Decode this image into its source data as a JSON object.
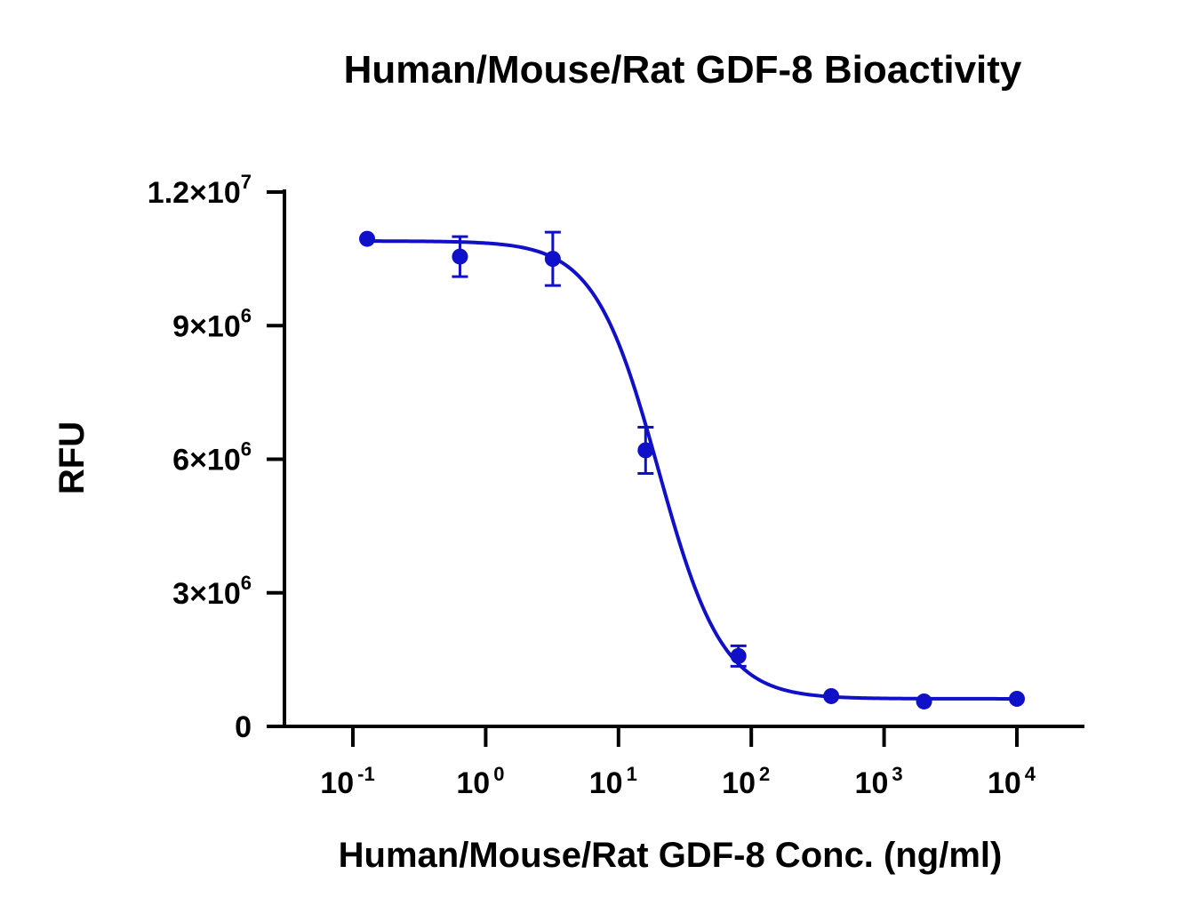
{
  "chart_data": {
    "type": "scatter",
    "title": "Human/Mouse/Rat GDF-8 Bioactivity",
    "xlabel": "Human/Mouse/Rat GDF-8 Conc. (ng/ml)",
    "ylabel": "RFU",
    "x_scale": "log",
    "xlim": [
      0.07,
      30000
    ],
    "ylim": [
      0,
      12000000
    ],
    "y_ticks": [
      {
        "value": 0,
        "label": "0",
        "mantissa": "",
        "exp": ""
      },
      {
        "value": 3000000,
        "label": "3×10^6",
        "mantissa": "3×10",
        "exp": "6"
      },
      {
        "value": 6000000,
        "label": "6×10^6",
        "mantissa": "6×10",
        "exp": "6"
      },
      {
        "value": 9000000,
        "label": "9×10^6",
        "mantissa": "9×10",
        "exp": "6"
      },
      {
        "value": 12000000,
        "label": "1.2×10^7",
        "mantissa": "1.2×10",
        "exp": "7"
      }
    ],
    "x_ticks": [
      {
        "value": 0.1,
        "base": "10",
        "exp": "-1"
      },
      {
        "value": 1,
        "base": "10",
        "exp": "0"
      },
      {
        "value": 10,
        "base": "10",
        "exp": "1"
      },
      {
        "value": 100,
        "base": "10",
        "exp": "2"
      },
      {
        "value": 1000,
        "base": "10",
        "exp": "3"
      },
      {
        "value": 10000,
        "base": "10",
        "exp": "4"
      }
    ],
    "series": [
      {
        "color": "#1010c8",
        "points": [
          {
            "x": 0.128,
            "y": 10950000,
            "err": 0
          },
          {
            "x": 0.64,
            "y": 10550000,
            "err": 450000
          },
          {
            "x": 3.2,
            "y": 10500000,
            "err": 600000
          },
          {
            "x": 16,
            "y": 6200000,
            "err": 520000
          },
          {
            "x": 80,
            "y": 1580000,
            "err": 230000
          },
          {
            "x": 400,
            "y": 680000,
            "err": 0
          },
          {
            "x": 2000,
            "y": 560000,
            "err": 0
          },
          {
            "x": 10000,
            "y": 620000,
            "err": 0
          }
        ],
        "fit": {
          "model": "4PL",
          "top": 10900000,
          "bottom": 620000,
          "ec50": 20,
          "hill": 1.8
        }
      }
    ]
  }
}
